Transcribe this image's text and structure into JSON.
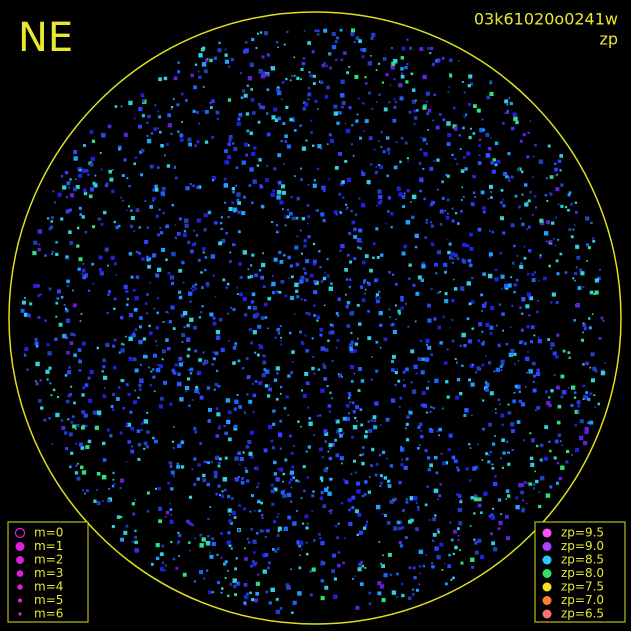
{
  "header": {
    "direction": "NE",
    "frame": "03k61020o0241w",
    "mode": "zp"
  },
  "magnitude_legend": {
    "items": [
      "m=0",
      "m=1",
      "m=2",
      "m=3",
      "m=4",
      "m=5",
      "m=6"
    ],
    "color": "#e020e0"
  },
  "zp_legend": {
    "items": [
      {
        "label": "zp=9.5",
        "color": "#ff50ff"
      },
      {
        "label": "zp=9.0",
        "color": "#b040ff"
      },
      {
        "label": "zp=8.5",
        "color": "#30c8ff"
      },
      {
        "label": "zp=8.0",
        "color": "#30e060"
      },
      {
        "label": "zp=7.5",
        "color": "#f0e020"
      },
      {
        "label": "zp=7.0",
        "color": "#ff8030"
      },
      {
        "label": "zp=6.5",
        "color": "#ff7070"
      }
    ]
  }
}
